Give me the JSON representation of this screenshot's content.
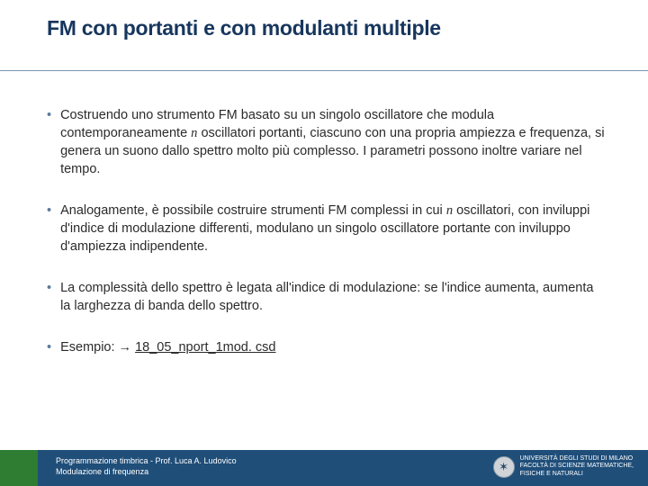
{
  "title": "FM con portanti e con modulanti multiple",
  "bullets": {
    "b1_pre": "Costruendo uno strumento FM basato su un singolo oscillatore che modula contemporaneamente ",
    "b1_n": "n",
    "b1_post": " oscillatori portanti, ciascuno con una propria ampiezza e frequenza, si genera un suono dallo spettro molto più complesso. I parametri possono inoltre variare nel tempo.",
    "b2_pre": "Analogamente, è possibile costruire strumenti FM complessi in cui ",
    "b2_n": "n",
    "b2_post": " oscillatori, con inviluppi d'indice di modulazione differenti, modulano un singolo oscillatore portante con inviluppo d'ampiezza indipendente.",
    "b3": "La complessità dello spettro è legata all'indice di modulazione: se l'indice aumenta, aumenta la larghezza di banda dello spettro.",
    "b4_pre": "Esempio: → ",
    "b4_link": "18_05_nport_1mod. csd"
  },
  "footer": {
    "line1": "Programmazione timbrica - Prof. Luca A. Ludovico",
    "line2": "Modulazione di frequenza",
    "uni_line1": "UNIVERSITÀ DEGLI STUDI DI MILANO",
    "uni_line2": "FACOLTÀ DI SCIENZE MATEMATICHE,",
    "uni_line3": "FISICHE E NATURALI"
  },
  "colors": {
    "title_color": "#17365d",
    "bullet_marker": "#5b7a99",
    "footer_bg": "#1f4e79",
    "footer_green": "#2e7d32"
  }
}
